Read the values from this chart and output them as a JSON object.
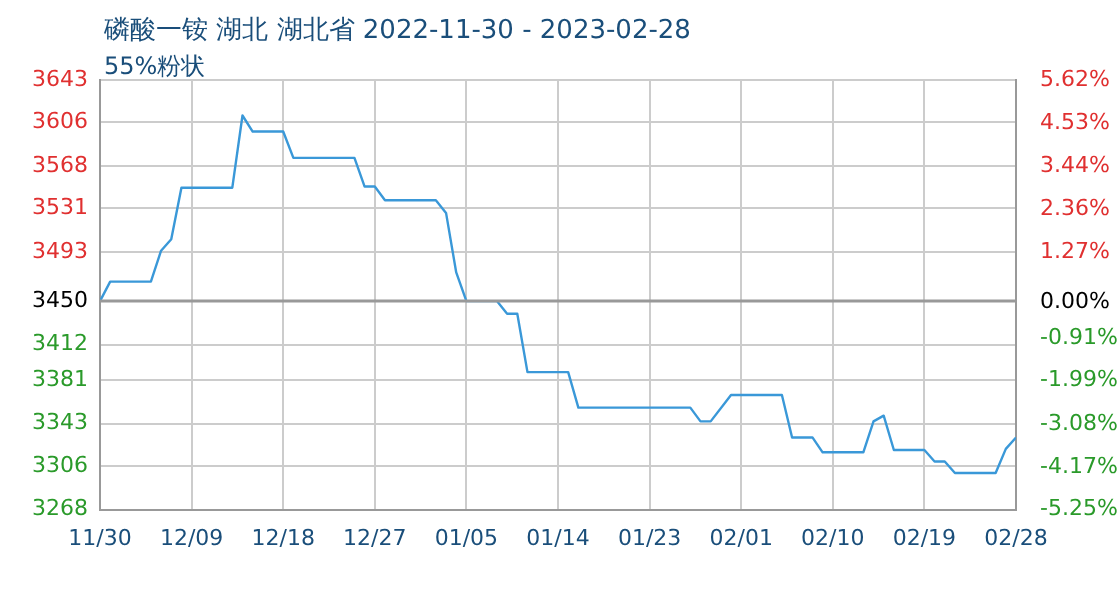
{
  "chart_data": {
    "type": "line",
    "title": "磷酸一铵 湖北 湖北省 2022-11-30 - 2023-02-28",
    "subtitle": "55%粉状",
    "x": [
      "2022-11-30",
      "2022-12-01",
      "2022-12-05",
      "2022-12-06",
      "2022-12-07",
      "2022-12-08",
      "2022-12-13",
      "2022-12-14",
      "2022-12-15",
      "2022-12-18",
      "2022-12-19",
      "2022-12-25",
      "2022-12-26",
      "2022-12-27",
      "2022-12-28",
      "2023-01-02",
      "2023-01-03",
      "2023-01-04",
      "2023-01-05",
      "2023-01-08",
      "2023-01-09",
      "2023-01-10",
      "2023-01-11",
      "2023-01-15",
      "2023-01-16",
      "2023-01-27",
      "2023-01-28",
      "2023-01-29",
      "2023-01-31",
      "2023-02-05",
      "2023-02-06",
      "2023-02-08",
      "2023-02-09",
      "2023-02-13",
      "2023-02-14",
      "2023-02-15",
      "2023-02-16",
      "2023-02-19",
      "2023-02-20",
      "2023-02-21",
      "2023-02-22",
      "2023-02-26",
      "2023-02-27",
      "2023-02-28"
    ],
    "series": [
      {
        "color": "#3a98d8",
        "values": [
          3450,
          3467,
          3467,
          3494,
          3504,
          3549,
          3549,
          3612,
          3598,
          3598,
          3575,
          3575,
          3550,
          3550,
          3538,
          3538,
          3527,
          3475,
          3450,
          3450,
          3439,
          3439,
          3388,
          3388,
          3357,
          3357,
          3345,
          3345,
          3368,
          3368,
          3331,
          3331,
          3318,
          3318,
          3345,
          3350,
          3320,
          3320,
          3310,
          3310,
          3300,
          3300,
          3321,
          3331
        ]
      }
    ],
    "xlim": [
      "2022-11-30",
      "2023-02-28"
    ],
    "xticks": [
      {
        "value": "2022-11-30",
        "label": "11/30"
      },
      {
        "value": "2022-12-09",
        "label": "12/09"
      },
      {
        "value": "2022-12-18",
        "label": "12/18"
      },
      {
        "value": "2022-12-27",
        "label": "12/27"
      },
      {
        "value": "2023-01-05",
        "label": "01/05"
      },
      {
        "value": "2023-01-14",
        "label": "01/14"
      },
      {
        "value": "2023-01-23",
        "label": "01/23"
      },
      {
        "value": "2023-02-01",
        "label": "02/01"
      },
      {
        "value": "2023-02-10",
        "label": "02/10"
      },
      {
        "value": "2023-02-19",
        "label": "02/19"
      },
      {
        "value": "2023-02-28",
        "label": "02/28"
      }
    ],
    "ylim": [
      3268,
      3643
    ],
    "yticks": [
      3268,
      3306,
      3343,
      3381,
      3412,
      3450,
      3493,
      3531,
      3568,
      3606,
      3643
    ],
    "y2lim": [
      -5.25,
      5.62
    ],
    "y2ticks": [
      {
        "value": -5.25,
        "label": "-5.25%"
      },
      {
        "value": -4.17,
        "label": "-4.17%"
      },
      {
        "value": -3.08,
        "label": "-3.08%"
      },
      {
        "value": -1.99,
        "label": "-1.99%"
      },
      {
        "value": -0.91,
        "label": "-0.91%"
      },
      {
        "value": 0,
        "label": "0.00%"
      },
      {
        "value": 1.27,
        "label": "1.27%"
      },
      {
        "value": 2.36,
        "label": "2.36%"
      },
      {
        "value": 3.44,
        "label": "3.44%"
      },
      {
        "value": 4.53,
        "label": "4.53%"
      },
      {
        "value": 5.62,
        "label": "5.62%"
      }
    ],
    "ref_lines": [
      {
        "axis": "y",
        "value": 3450,
        "color": "#999999"
      }
    ],
    "grid": true,
    "legend": false,
    "marker": "none",
    "line_style": "solid"
  }
}
